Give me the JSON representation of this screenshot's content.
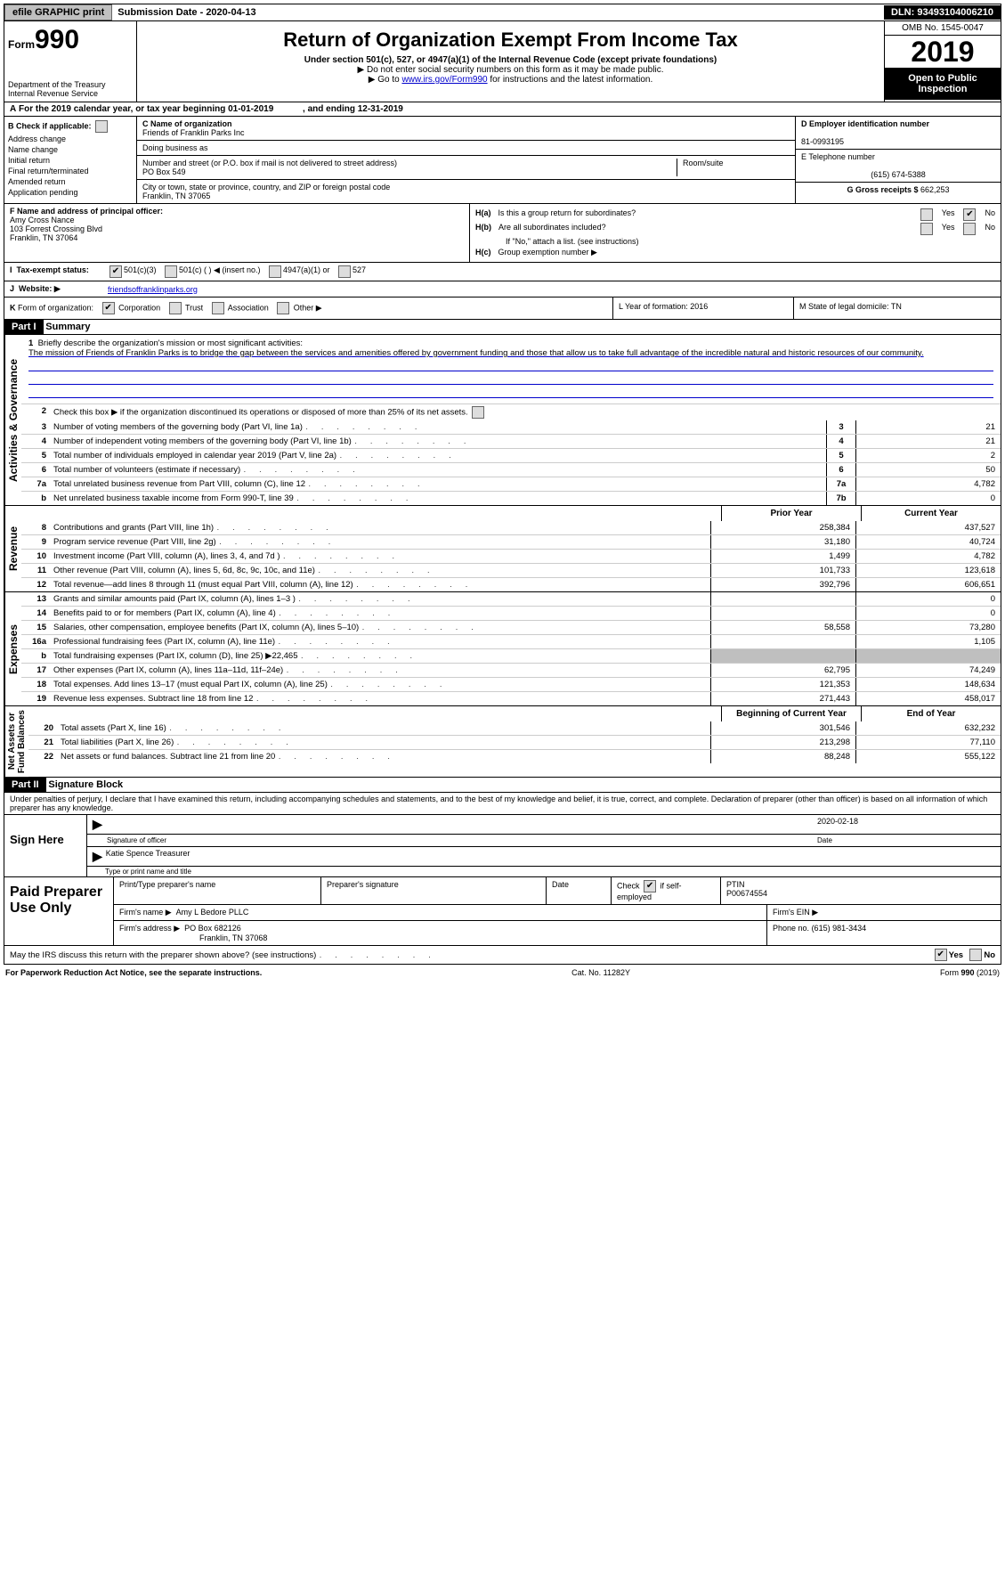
{
  "topbar": {
    "efile": "efile GRAPHIC print",
    "submission_label": "Submission Date - 2020-04-13",
    "dln": "DLN: 93493104006210"
  },
  "header": {
    "form_prefix": "Form",
    "form_num": "990",
    "title": "Return of Organization Exempt From Income Tax",
    "subtitle": "Under section 501(c), 527, or 4947(a)(1) of the Internal Revenue Code (except private foundations)",
    "note1": "▶ Do not enter social security numbers on this form as it may be made public.",
    "note2_pre": "▶ Go to ",
    "note2_link": "www.irs.gov/Form990",
    "note2_post": " for instructions and the latest information.",
    "dept": "Department of the Treasury\nInternal Revenue Service",
    "omb": "OMB No. 1545-0047",
    "year": "2019",
    "open": "Open to Public Inspection"
  },
  "rowA": {
    "prefix": "A",
    "text": "For the 2019 calendar year, or tax year beginning 01-01-2019",
    "ending": ", and ending 12-31-2019"
  },
  "B": {
    "label": "B",
    "check_label": "Check if applicable:",
    "items": [
      "Address change",
      "Name change",
      "Initial return",
      "Final return/terminated",
      "Amended return",
      "Application pending"
    ]
  },
  "C": {
    "name_label": "C Name of organization",
    "name": "Friends of Franklin Parks Inc",
    "dba_label": "Doing business as",
    "street_label": "Number and street (or P.O. box if mail is not delivered to street address)",
    "street": "PO Box 549",
    "room_label": "Room/suite",
    "city_label": "City or town, state or province, country, and ZIP or foreign postal code",
    "city": "Franklin, TN  37065"
  },
  "D": {
    "label": "D Employer identification number",
    "value": "81-0993195",
    "E_label": "E Telephone number",
    "E_value": "(615) 674-5388",
    "G_label": "G Gross receipts $",
    "G_value": "662,253"
  },
  "F": {
    "label": "F  Name and address of principal officer:",
    "name": "Amy Cross Nance",
    "street": "103 Forrest Crossing Blvd",
    "city": "Franklin, TN  37064"
  },
  "H": {
    "a_label": "H(a)",
    "a_text": "Is this a group return for subordinates?",
    "a_yes": "Yes",
    "a_no": "No",
    "b_label": "H(b)",
    "b_text": "Are all subordinates included?",
    "b_note": "If \"No,\" attach a list. (see instructions)",
    "c_label": "H(c)",
    "c_text": "Group exemption number ▶"
  },
  "I": {
    "label": "I",
    "text": "Tax-exempt status:",
    "opts": [
      "501(c)(3)",
      "501(c) (   ) ◀ (insert no.)",
      "4947(a)(1) or",
      "527"
    ]
  },
  "J": {
    "label": "J",
    "text": "Website: ▶",
    "value": "friendsoffranklinparks.org"
  },
  "K": {
    "label": "K",
    "text": "Form of organization:",
    "opts": [
      "Corporation",
      "Trust",
      "Association",
      "Other ▶"
    ]
  },
  "L": {
    "text": "L Year of formation: 2016"
  },
  "M": {
    "text": "M State of legal domicile: TN"
  },
  "partI": {
    "hdr": "Part I",
    "title": "Summary"
  },
  "summary": {
    "line1_label": "1",
    "line1_text": "Briefly describe the organization's mission or most significant activities:",
    "mission": "The mission of Friends of Franklin Parks is to bridge the gap between the services and amenities offered by government funding and those that allow us to take full advantage of the incredible natural and historic resources of our community.",
    "line2_label": "2",
    "line2_text": "Check this box ▶  if the organization discontinued its operations or disposed of more than 25% of its net assets.",
    "rows": [
      {
        "n": "3",
        "d": "Number of voting members of the governing body (Part VI, line 1a)",
        "b": "3",
        "v": "21"
      },
      {
        "n": "4",
        "d": "Number of independent voting members of the governing body (Part VI, line 1b)",
        "b": "4",
        "v": "21"
      },
      {
        "n": "5",
        "d": "Total number of individuals employed in calendar year 2019 (Part V, line 2a)",
        "b": "5",
        "v": "2"
      },
      {
        "n": "6",
        "d": "Total number of volunteers (estimate if necessary)",
        "b": "6",
        "v": "50"
      },
      {
        "n": "7a",
        "d": "Total unrelated business revenue from Part VIII, column (C), line 12",
        "b": "7a",
        "v": "4,782"
      },
      {
        "n": "b",
        "d": "Net unrelated business taxable income from Form 990-T, line 39",
        "b": "7b",
        "v": "0"
      }
    ],
    "side_ag": "Activities & Governance",
    "side_rev": "Revenue",
    "side_exp": "Expenses",
    "side_na": "Net Assets or\nFund Balances",
    "prior_hdr": "Prior Year",
    "curr_hdr": "Current Year",
    "rev_rows": [
      {
        "n": "8",
        "d": "Contributions and grants (Part VIII, line 1h)",
        "p": "258,384",
        "c": "437,527"
      },
      {
        "n": "9",
        "d": "Program service revenue (Part VIII, line 2g)",
        "p": "31,180",
        "c": "40,724"
      },
      {
        "n": "10",
        "d": "Investment income (Part VIII, column (A), lines 3, 4, and 7d )",
        "p": "1,499",
        "c": "4,782"
      },
      {
        "n": "11",
        "d": "Other revenue (Part VIII, column (A), lines 5, 6d, 8c, 9c, 10c, and 11e)",
        "p": "101,733",
        "c": "123,618"
      },
      {
        "n": "12",
        "d": "Total revenue—add lines 8 through 11 (must equal Part VIII, column (A), line 12)",
        "p": "392,796",
        "c": "606,651"
      }
    ],
    "exp_rows": [
      {
        "n": "13",
        "d": "Grants and similar amounts paid (Part IX, column (A), lines 1–3 )",
        "p": "",
        "c": "0"
      },
      {
        "n": "14",
        "d": "Benefits paid to or for members (Part IX, column (A), line 4)",
        "p": "",
        "c": "0"
      },
      {
        "n": "15",
        "d": "Salaries, other compensation, employee benefits (Part IX, column (A), lines 5–10)",
        "p": "58,558",
        "c": "73,280"
      },
      {
        "n": "16a",
        "d": "Professional fundraising fees (Part IX, column (A), line 11e)",
        "p": "",
        "c": "1,105"
      },
      {
        "n": "b",
        "d": "Total fundraising expenses (Part IX, column (D), line 25) ▶22,465",
        "p": "grey",
        "c": "grey"
      },
      {
        "n": "17",
        "d": "Other expenses (Part IX, column (A), lines 11a–11d, 11f–24e)",
        "p": "62,795",
        "c": "74,249"
      },
      {
        "n": "18",
        "d": "Total expenses. Add lines 13–17 (must equal Part IX, column (A), line 25)",
        "p": "121,353",
        "c": "148,634"
      },
      {
        "n": "19",
        "d": "Revenue less expenses. Subtract line 18 from line 12",
        "p": "271,443",
        "c": "458,017"
      }
    ],
    "boy_hdr": "Beginning of Current Year",
    "eoy_hdr": "End of Year",
    "na_rows": [
      {
        "n": "20",
        "d": "Total assets (Part X, line 16)",
        "p": "301,546",
        "c": "632,232"
      },
      {
        "n": "21",
        "d": "Total liabilities (Part X, line 26)",
        "p": "213,298",
        "c": "77,110"
      },
      {
        "n": "22",
        "d": "Net assets or fund balances. Subtract line 21 from line 20",
        "p": "88,248",
        "c": "555,122"
      }
    ]
  },
  "partII": {
    "hdr": "Part II",
    "title": "Signature Block"
  },
  "perjury": "Under penalties of perjury, I declare that I have examined this return, including accompanying schedules and statements, and to the best of my knowledge and belief, it is true, correct, and complete. Declaration of preparer (other than officer) is based on all information of which preparer has any knowledge.",
  "sign": {
    "label": "Sign Here",
    "date": "2020-02-18",
    "sig_label": "Signature of officer",
    "date_label": "Date",
    "name": "Katie Spence  Treasurer",
    "name_label": "Type or print name and title"
  },
  "prep": {
    "label": "Paid Preparer Use Only",
    "c1": "Print/Type preparer's name",
    "c2": "Preparer's signature",
    "c3": "Date",
    "c4_pre": "Check",
    "c4_post": "if self-employed",
    "c5_label": "PTIN",
    "c5": "P00674554",
    "firm_label": "Firm's name   ▶",
    "firm": "Amy L Bedore PLLC",
    "ein_label": "Firm's EIN ▶",
    "addr_label": "Firm's address ▶",
    "addr1": "PO Box 682126",
    "addr2": "Franklin, TN  37068",
    "phone_label": "Phone no.",
    "phone": "(615) 981-3434"
  },
  "may": {
    "text": "May the IRS discuss this return with the preparer shown above? (see instructions)",
    "yes": "Yes",
    "no": "No"
  },
  "footer": {
    "left": "For Paperwork Reduction Act Notice, see the separate instructions.",
    "mid": "Cat. No. 11282Y",
    "right": "Form 990 (2019)"
  }
}
